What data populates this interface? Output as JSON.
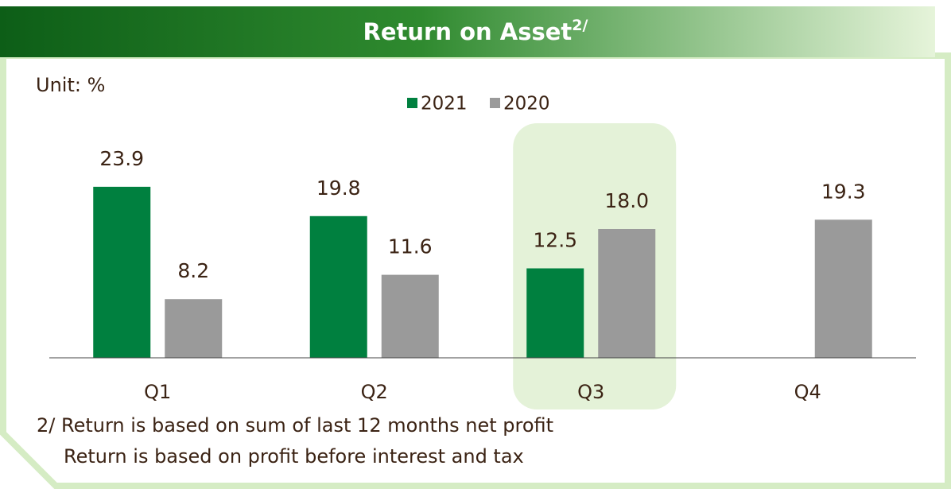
{
  "chart_data": {
    "type": "bar",
    "title": "Return on Asset",
    "title_superscript": "2/",
    "unit_label": "Unit: %",
    "categories": [
      "Q1",
      "Q2",
      "Q3",
      "Q4"
    ],
    "series": [
      {
        "name": "2021",
        "color": "#00803f",
        "values": [
          23.9,
          19.8,
          12.5,
          null
        ]
      },
      {
        "name": "2020",
        "color": "#9a9a9a",
        "values": [
          8.2,
          11.6,
          18.0,
          19.3
        ],
        "value_labels": [
          "8.2",
          "11.6",
          "18.0",
          "19.3"
        ]
      }
    ],
    "ylim": [
      0,
      25
    ],
    "highlight": "Q3",
    "footnotes": [
      "2/ Return is based on sum of last 12 months net profit",
      "Return is based on profit before interest and tax"
    ]
  }
}
